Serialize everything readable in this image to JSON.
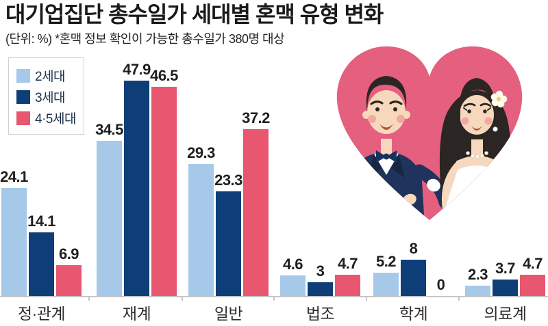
{
  "title": "대기업집단 총수일가 세대별 혼맥 유형 변화",
  "subtitle": "(단위: %) *혼맥 정보 확인이 가능한 총수일가 380명 대상",
  "legend": {
    "items": [
      {
        "label": "2세대",
        "color": "#a6c9ea"
      },
      {
        "label": "3세대",
        "color": "#0e3e78"
      },
      {
        "label": "4·5세대",
        "color": "#e8576f"
      }
    ]
  },
  "illustration": {
    "name": "wedding-couple-in-heart",
    "heart_color": "#e4607e"
  },
  "chart_data": {
    "type": "bar",
    "title": "대기업집단 총수일가 세대별 혼맥 유형 변화",
    "unit": "%",
    "categories": [
      "정·관계",
      "재계",
      "일반",
      "법조",
      "학계",
      "의료계"
    ],
    "series": [
      {
        "name": "2세대",
        "color": "#a6c9ea",
        "values": [
          24.1,
          34.5,
          29.3,
          4.6,
          5.2,
          2.3
        ]
      },
      {
        "name": "3세대",
        "color": "#0e3e78",
        "values": [
          14.1,
          47.9,
          23.3,
          3,
          8,
          3.7
        ]
      },
      {
        "name": "4·5세대",
        "color": "#e8576f",
        "values": [
          6.9,
          46.5,
          37.2,
          4.7,
          0,
          4.7
        ]
      }
    ],
    "ylim": [
      0,
      50
    ],
    "value_labels": true,
    "grid": false,
    "legend_position": "top-left",
    "axis_color": "#c6c6c6"
  }
}
